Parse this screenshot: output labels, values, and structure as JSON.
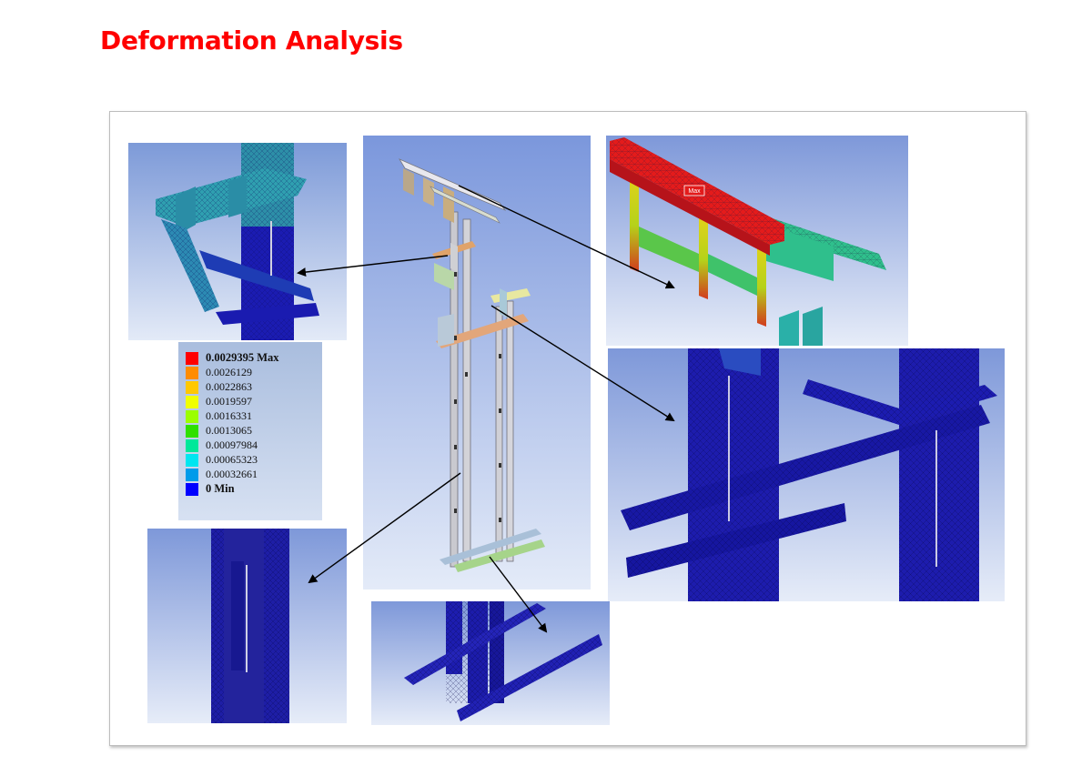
{
  "page": {
    "title": "Deformation Analysis"
  },
  "legend": {
    "items": [
      {
        "label": "0.0029395 Max",
        "color": "#ff0000",
        "bold": true
      },
      {
        "label": "0.0026129",
        "color": "#ff8c00",
        "bold": false
      },
      {
        "label": "0.0022863",
        "color": "#ffc800",
        "bold": false
      },
      {
        "label": "0.0019597",
        "color": "#f0ff00",
        "bold": false
      },
      {
        "label": "0.0016331",
        "color": "#9bff00",
        "bold": false
      },
      {
        "label": "0.0013065",
        "color": "#2fe000",
        "bold": false
      },
      {
        "label": "0.00097984",
        "color": "#00e89a",
        "bold": false
      },
      {
        "label": "0.00065323",
        "color": "#00e6f0",
        "bold": false
      },
      {
        "label": "0.00032661",
        "color": "#009bea",
        "bold": false
      },
      {
        "label": "0 Min",
        "color": "#0000ff",
        "bold": true
      }
    ]
  },
  "colors": {
    "accent_title": "#ff0000",
    "mesh_blue": "#1c1aa8",
    "mesh_teal": "#2fa6b0",
    "mesh_green": "#2fbf8c",
    "max_red": "#e41b1b"
  },
  "tags": {
    "max": "Max"
  }
}
